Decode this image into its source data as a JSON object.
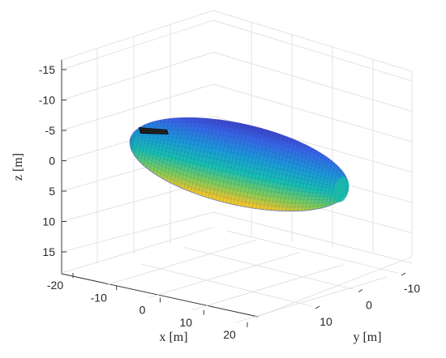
{
  "chart_data": {
    "type": "surface3d",
    "title": "",
    "xlabel": "x [m]",
    "ylabel": "y [m]",
    "zlabel": "z [m]",
    "x_ticks": [
      "-20",
      "-10",
      "0",
      "10",
      "20"
    ],
    "y_ticks": [
      "-10",
      "0",
      "10"
    ],
    "z_ticks": [
      "-15",
      "-10",
      "-5",
      "0",
      "5",
      "10",
      "15"
    ],
    "xlim": [
      -25,
      25
    ],
    "ylim": [
      -15,
      15
    ],
    "zlim": [
      -18,
      18
    ],
    "z_reversed": true,
    "grid": true,
    "surface": {
      "shape": "ellipsoid",
      "center": [
        0,
        0,
        0
      ],
      "semi_axes": [
        24,
        6,
        6
      ],
      "colormap": "parula",
      "mesh": "wireframe"
    },
    "marker": {
      "shape": "body",
      "color": "#000000"
    }
  }
}
